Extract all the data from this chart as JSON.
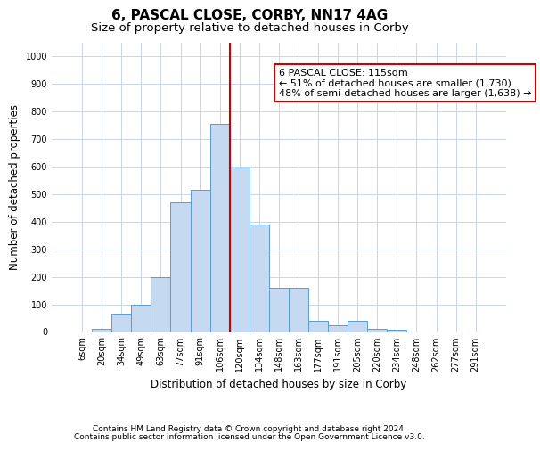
{
  "title": "6, PASCAL CLOSE, CORBY, NN17 4AG",
  "subtitle": "Size of property relative to detached houses in Corby",
  "xlabel": "Distribution of detached houses by size in Corby",
  "ylabel": "Number of detached properties",
  "categories": [
    "6sqm",
    "20sqm",
    "34sqm",
    "49sqm",
    "63sqm",
    "77sqm",
    "91sqm",
    "106sqm",
    "120sqm",
    "134sqm",
    "148sqm",
    "163sqm",
    "177sqm",
    "191sqm",
    "205sqm",
    "220sqm",
    "234sqm",
    "248sqm",
    "262sqm",
    "277sqm",
    "291sqm"
  ],
  "values": [
    0,
    12,
    65,
    100,
    200,
    470,
    515,
    755,
    595,
    390,
    160,
    160,
    40,
    25,
    42,
    12,
    8,
    0,
    0,
    0,
    0
  ],
  "bar_color": "#c5d9f0",
  "bar_edge_color": "#5b9bd5",
  "vline_color": "#cc0000",
  "vline_x_index": 8,
  "annotation_text": "6 PASCAL CLOSE: 115sqm\n← 51% of detached houses are smaller (1,730)\n48% of semi-detached houses are larger (1,638) →",
  "annotation_box_color": "white",
  "annotation_box_edge_color": "#cc0000",
  "ylim": [
    0,
    1050
  ],
  "yticks": [
    0,
    100,
    200,
    300,
    400,
    500,
    600,
    700,
    800,
    900,
    1000
  ],
  "footer_line1": "Contains HM Land Registry data © Crown copyright and database right 2024.",
  "footer_line2": "Contains public sector information licensed under the Open Government Licence v3.0.",
  "bg_color": "#ffffff",
  "grid_color": "#c8d4e8",
  "title_fontsize": 11,
  "subtitle_fontsize": 9.5,
  "axis_label_fontsize": 8.5,
  "tick_fontsize": 7,
  "footer_fontsize": 6.5,
  "annotation_fontsize": 8
}
